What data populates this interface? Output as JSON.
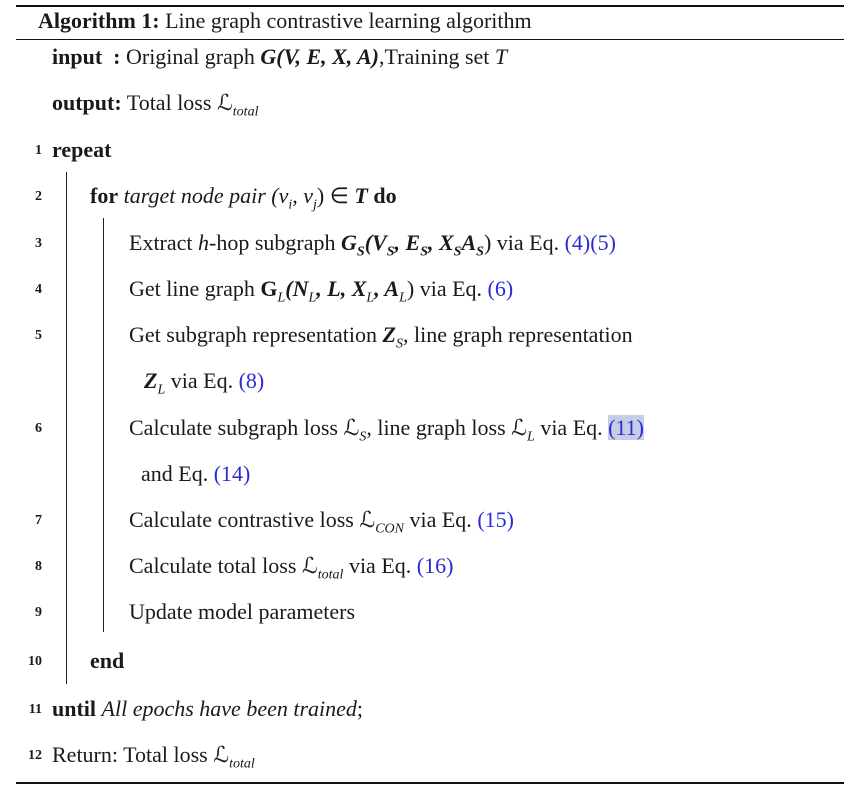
{
  "caption": {
    "label": "Algorithm 1:",
    "title": "Line graph contrastive learning algorithm"
  },
  "header": {
    "input_kw": "input",
    "input_colon": ":",
    "input_text": "Original graph",
    "input_G": "G(V, E, X, A)",
    "input_rest": ",Training set",
    "input_T": "T",
    "output_kw": "output:",
    "output_text": "Total loss",
    "output_L": "ℒ",
    "output_sub": "total"
  },
  "lines": {
    "l1": {
      "num": "1",
      "kw": "repeat"
    },
    "l2": {
      "num": "2",
      "kw": "for",
      "it": "target node pair",
      "math1": "(v",
      "sub_i": "i",
      "math2": ", v",
      "sub_j": "j",
      "math3": ") ∈",
      "T": "T",
      "kw2": "do"
    },
    "l3": {
      "num": "3",
      "pre": "Extract",
      "h": "h",
      "mid": "-hop subgraph",
      "G": "G",
      "subS": "S",
      "args": "(V",
      "subS2": "S",
      "comma": ", E",
      "subS3": "S",
      "comma2": ", X",
      "subS4": "S",
      "A": "A",
      "subS5": "S",
      "close": ")",
      "via": "via Eq.",
      "ref1": "(4)",
      "ref2": "(5)"
    },
    "l4": {
      "num": "4",
      "pre": "Get line graph",
      "G": "G",
      "subL": "L",
      "args": "(N",
      "subL2": "L",
      "c1": ", L, X",
      "subL3": "L",
      "c2": ", A",
      "subL4": "L",
      "close": ")",
      "via": "via Eq.",
      "ref": "(6)"
    },
    "l5": {
      "num": "5",
      "pre": "Get subgraph representation",
      "Z": "Z",
      "subS": "S",
      "mid": ", line graph representation"
    },
    "l5b": {
      "Z": "Z",
      "subL": "L",
      "via": "via Eq.",
      "ref": "(8)"
    },
    "l6": {
      "num": "6",
      "pre": "Calculate subgraph loss",
      "L1": "ℒ",
      "sub1": "S",
      "mid": ", line graph loss",
      "L2": "ℒ",
      "sub2": "L",
      "via": "via Eq.",
      "ref": "(11)"
    },
    "l6b": {
      "pre": "and Eq.",
      "ref": "(14)"
    },
    "l7": {
      "num": "7",
      "pre": "Calculate contrastive loss",
      "L": "ℒ",
      "sub": "CON",
      "via": "via Eq.",
      "ref": "(15)"
    },
    "l8": {
      "num": "8",
      "pre": "Calculate total loss",
      "L": "ℒ",
      "sub": "total",
      "via": "via Eq.",
      "ref": "(16)"
    },
    "l9": {
      "num": "9",
      "text": "Update model parameters"
    },
    "l10": {
      "num": "10",
      "kw": "end"
    },
    "l11": {
      "num": "11",
      "kw": "until",
      "it": "All epochs have been trained",
      "semi": ";"
    },
    "l12": {
      "num": "12",
      "pre": "Return:  Total loss",
      "L": "ℒ",
      "sub": "total"
    }
  },
  "colors": {
    "link": "#2b2bd6",
    "highlight": "#c7cde6"
  }
}
